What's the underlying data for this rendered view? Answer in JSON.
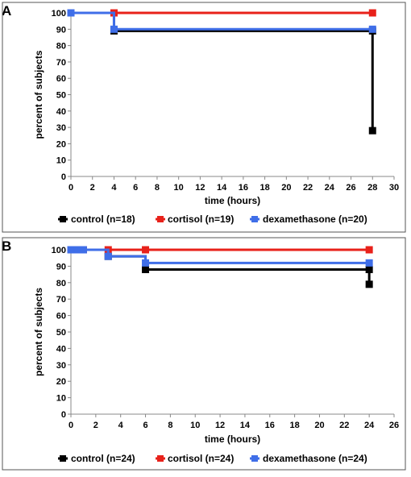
{
  "panels": [
    {
      "label": "A"
    },
    {
      "label": "B"
    }
  ],
  "chart_data": [
    {
      "type": "line",
      "step": true,
      "ylabel": "percent of subjects",
      "xlabel": "time (hours)",
      "xlim": [
        0,
        30
      ],
      "ylim": [
        0,
        100
      ],
      "xticks": [
        0,
        2,
        4,
        6,
        8,
        10,
        12,
        14,
        16,
        18,
        20,
        22,
        24,
        26,
        28,
        30
      ],
      "yticks": [
        0,
        10,
        20,
        30,
        40,
        50,
        60,
        70,
        80,
        90,
        100
      ],
      "legend_position": "bottom",
      "series": [
        {
          "name": "control (n=18)",
          "color": "#000000",
          "x": [
            0,
            4,
            28,
            28
          ],
          "y": [
            100,
            89,
            89,
            28
          ]
        },
        {
          "name": "cortisol (n=19)",
          "color": "#e8211a",
          "x": [
            0,
            4,
            28
          ],
          "y": [
            100,
            100,
            100
          ]
        },
        {
          "name": "dexamethasone (n=20)",
          "color": "#3f6ee8",
          "x": [
            0,
            4,
            28
          ],
          "y": [
            100,
            90,
            90
          ]
        }
      ]
    },
    {
      "type": "line",
      "step": true,
      "ylabel": "percent of subjects",
      "xlabel": "time (hours)",
      "xlim": [
        0,
        26
      ],
      "ylim": [
        0,
        100
      ],
      "xticks": [
        0,
        2,
        4,
        6,
        8,
        10,
        12,
        14,
        16,
        18,
        20,
        22,
        24,
        26
      ],
      "yticks": [
        0,
        10,
        20,
        30,
        40,
        50,
        60,
        70,
        80,
        90,
        100
      ],
      "legend_position": "bottom",
      "series": [
        {
          "name": "control (n=24)",
          "color": "#000000",
          "x": [
            0,
            0.25,
            0.5,
            0.75,
            1,
            3,
            6,
            24,
            24
          ],
          "y": [
            100,
            100,
            100,
            100,
            100,
            96,
            88,
            88,
            79
          ]
        },
        {
          "name": "cortisol (n=24)",
          "color": "#e8211a",
          "x": [
            0,
            0.25,
            0.5,
            0.75,
            1,
            3,
            6,
            24
          ],
          "y": [
            100,
            100,
            100,
            100,
            100,
            100,
            100,
            100
          ]
        },
        {
          "name": "dexamethasone (n=24)",
          "color": "#3f6ee8",
          "x": [
            0,
            0.25,
            0.5,
            0.75,
            1,
            3,
            6,
            24
          ],
          "y": [
            100,
            100,
            100,
            100,
            100,
            96,
            92,
            92
          ]
        }
      ]
    }
  ]
}
